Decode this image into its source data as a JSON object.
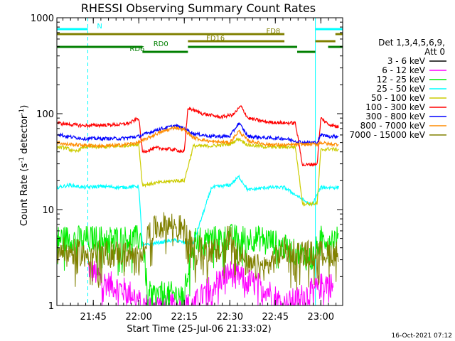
{
  "chart_data": {
    "type": "line",
    "title": "RHESSI Observing Summary Count Rates",
    "xlabel": "Start Time (25-Jul-06 21:33:02)",
    "ylabel": "Count Rate (s",
    "ylabel_sup1": "-1",
    "ylabel_mid": " detector",
    "ylabel_sup2": "-1",
    "ylabel_end": ")",
    "y_scale": "log",
    "ylim": [
      1,
      1000
    ],
    "xlim": [
      21.55,
      23.12
    ],
    "x_unit": "hours UT",
    "x_ticks": [
      {
        "value": 21.75,
        "label": "21:45"
      },
      {
        "value": 22.0,
        "label": "22:00"
      },
      {
        "value": 22.25,
        "label": "22:15"
      },
      {
        "value": 22.5,
        "label": "22:30"
      },
      {
        "value": 22.75,
        "label": "22:45"
      },
      {
        "value": 23.0,
        "label": "23:00"
      }
    ],
    "y_ticks": [
      {
        "value": 1,
        "label": "1"
      },
      {
        "value": 10,
        "label": "10"
      },
      {
        "value": 100,
        "label": "100"
      },
      {
        "value": 1000,
        "label": "1000"
      }
    ],
    "legend_header": [
      "Det 1,3,4,5,6,9,",
      "Att 0"
    ],
    "legend_placement": "right",
    "series": [
      {
        "name": "3 - 6 keV",
        "color": "#000000",
        "x": [],
        "y": []
      },
      {
        "name": "6 - 12 keV",
        "color": "#ff00ff",
        "x": [
          21.72,
          21.76,
          21.8,
          21.9,
          21.97,
          22.02,
          22.15,
          22.3,
          22.4,
          22.5,
          22.6,
          22.7,
          22.8,
          22.98,
          23.04,
          23.07
        ],
        "y": [
          2.5,
          2.2,
          1.8,
          1.5,
          1.3,
          1.0,
          1.0,
          1.0,
          1.6,
          2.2,
          1.8,
          1.5,
          1.0,
          1.5,
          1.8,
          1.5
        ]
      },
      {
        "name": "12 - 25 keV",
        "color": "#00ee00",
        "x": [
          21.55,
          21.7,
          21.9,
          22.02,
          22.05,
          22.2,
          22.25,
          22.3,
          22.45,
          22.5,
          22.6,
          22.7,
          22.8,
          22.95,
          23.0,
          23.1
        ],
        "y": [
          5.0,
          5.0,
          5.0,
          5.0,
          1.3,
          1.3,
          1.3,
          5.0,
          5.0,
          5.2,
          5.0,
          5.0,
          4.0,
          3.0,
          5.0,
          5.0
        ]
      },
      {
        "name": "25 - 50 keV",
        "color": "#00ffff",
        "x": [
          21.55,
          21.62,
          21.7,
          21.8,
          21.9,
          22.0,
          22.02,
          22.1,
          22.2,
          22.25,
          22.3,
          22.4,
          22.5,
          22.55,
          22.6,
          22.7,
          22.8,
          22.95,
          23.0,
          23.1
        ],
        "y": [
          17,
          18,
          17,
          17.5,
          17,
          17.5,
          4.2,
          4.5,
          4.8,
          4.5,
          4.5,
          17,
          18,
          22,
          16,
          17,
          17,
          11,
          17,
          17
        ]
      },
      {
        "name": "50 - 100 keV",
        "color": "#cccc00",
        "x": [
          21.55,
          21.6,
          21.65,
          21.7,
          21.8,
          21.9,
          22.0,
          22.02,
          22.1,
          22.2,
          22.25,
          22.3,
          22.4,
          22.5,
          22.55,
          22.6,
          22.7,
          22.8,
          22.86,
          22.9,
          22.98,
          23.0,
          23.05,
          23.1
        ],
        "y": [
          45,
          44,
          40,
          45,
          45,
          46,
          48,
          18,
          19,
          20,
          20,
          46,
          46,
          48,
          55,
          47,
          45,
          45,
          45,
          11.5,
          11.5,
          42,
          43,
          42
        ]
      },
      {
        "name": "100 - 300 keV",
        "color": "#ff0000",
        "x": [
          21.55,
          21.6,
          21.7,
          21.8,
          21.9,
          21.95,
          22.0,
          22.02,
          22.1,
          22.2,
          22.25,
          22.27,
          22.35,
          22.45,
          22.52,
          22.56,
          22.6,
          22.7,
          22.8,
          22.86,
          22.9,
          22.98,
          23.0,
          23.04,
          23.1
        ],
        "y": [
          80,
          78,
          75,
          76,
          77,
          80,
          90,
          40,
          44,
          42,
          40,
          115,
          100,
          92,
          98,
          120,
          90,
          82,
          80,
          80,
          29,
          30,
          90,
          78,
          72
        ]
      },
      {
        "name": "300 - 800 keV",
        "color": "#0000ff",
        "x": [
          21.55,
          21.6,
          21.7,
          21.8,
          21.9,
          22.0,
          22.1,
          22.2,
          22.25,
          22.3,
          22.4,
          22.5,
          22.55,
          22.6,
          22.7,
          22.8,
          22.9,
          22.98,
          23.0,
          23.05,
          23.1
        ],
        "y": [
          62,
          58,
          55,
          55,
          55,
          58,
          68,
          75,
          70,
          62,
          58,
          58,
          80,
          58,
          56,
          55,
          50,
          50,
          60,
          58,
          58
        ]
      },
      {
        "name": "800 - 7000 keV",
        "color": "#ff8c00",
        "x": [
          21.55,
          21.6,
          21.7,
          21.8,
          21.9,
          22.0,
          22.1,
          22.2,
          22.25,
          22.3,
          22.4,
          22.5,
          22.55,
          22.6,
          22.7,
          22.8,
          22.9,
          22.98,
          23.0,
          23.05,
          23.1
        ],
        "y": [
          50,
          48,
          47,
          46,
          47,
          50,
          62,
          72,
          68,
          56,
          51,
          50,
          66,
          52,
          48,
          47,
          48,
          48,
          50,
          48,
          48
        ]
      },
      {
        "name": "7000 - 15000 keV",
        "color": "#808000",
        "x": [
          21.55,
          21.7,
          21.9,
          22.0,
          22.05,
          22.1,
          22.15,
          22.2,
          22.25,
          22.3,
          22.4,
          22.45,
          22.5,
          22.55,
          22.6,
          22.7,
          22.8,
          22.9,
          22.98,
          23.0,
          23.1
        ],
        "y": [
          3.8,
          3.5,
          3.5,
          3.2,
          5.5,
          6.5,
          7.0,
          7.0,
          6.0,
          3.8,
          3.8,
          3.5,
          5.5,
          3.5,
          2.5,
          2.5,
          3.8,
          3.5,
          3.5,
          3.5,
          3.5
        ]
      }
    ],
    "flags": [
      {
        "name": "N",
        "color": "#00ffff",
        "row": 0,
        "label_x": 21.77,
        "segments": [
          [
            21.55,
            21.72
          ],
          [
            22.97,
            23.12
          ]
        ]
      },
      {
        "name": "FD8",
        "color": "#808000",
        "row": 1,
        "label_x": 22.7,
        "segments": [
          [
            21.55,
            22.8
          ],
          [
            23.08,
            23.12
          ]
        ]
      },
      {
        "name": "FD16",
        "color": "#808000",
        "row": 2,
        "label_x": 22.37,
        "segments": [
          [
            22.27,
            22.8
          ],
          [
            22.97,
            23.08
          ]
        ]
      },
      {
        "name": "RD0",
        "color": "#007f00",
        "row": 3,
        "label_x": 22.08,
        "segments": [
          [
            21.55,
            22.02
          ],
          [
            22.27,
            22.87
          ],
          [
            23.04,
            23.12
          ]
        ]
      },
      {
        "name": "RD6",
        "color": "#007f00",
        "row": 4,
        "label_x": 21.95,
        "segments": [
          [
            22.02,
            22.27
          ],
          [
            22.87,
            22.97
          ]
        ]
      }
    ],
    "vertical_lines": [
      {
        "x": 21.55,
        "color": "#00ffff",
        "style": "solid"
      },
      {
        "x": 21.72,
        "color": "#00ffff",
        "style": "dashed"
      },
      {
        "x": 22.97,
        "color": "#00ffff",
        "style": "solid"
      },
      {
        "x": 23.12,
        "color": "#00ffff",
        "style": "dashed"
      }
    ],
    "timestamp": "16-Oct-2021 07:12"
  }
}
